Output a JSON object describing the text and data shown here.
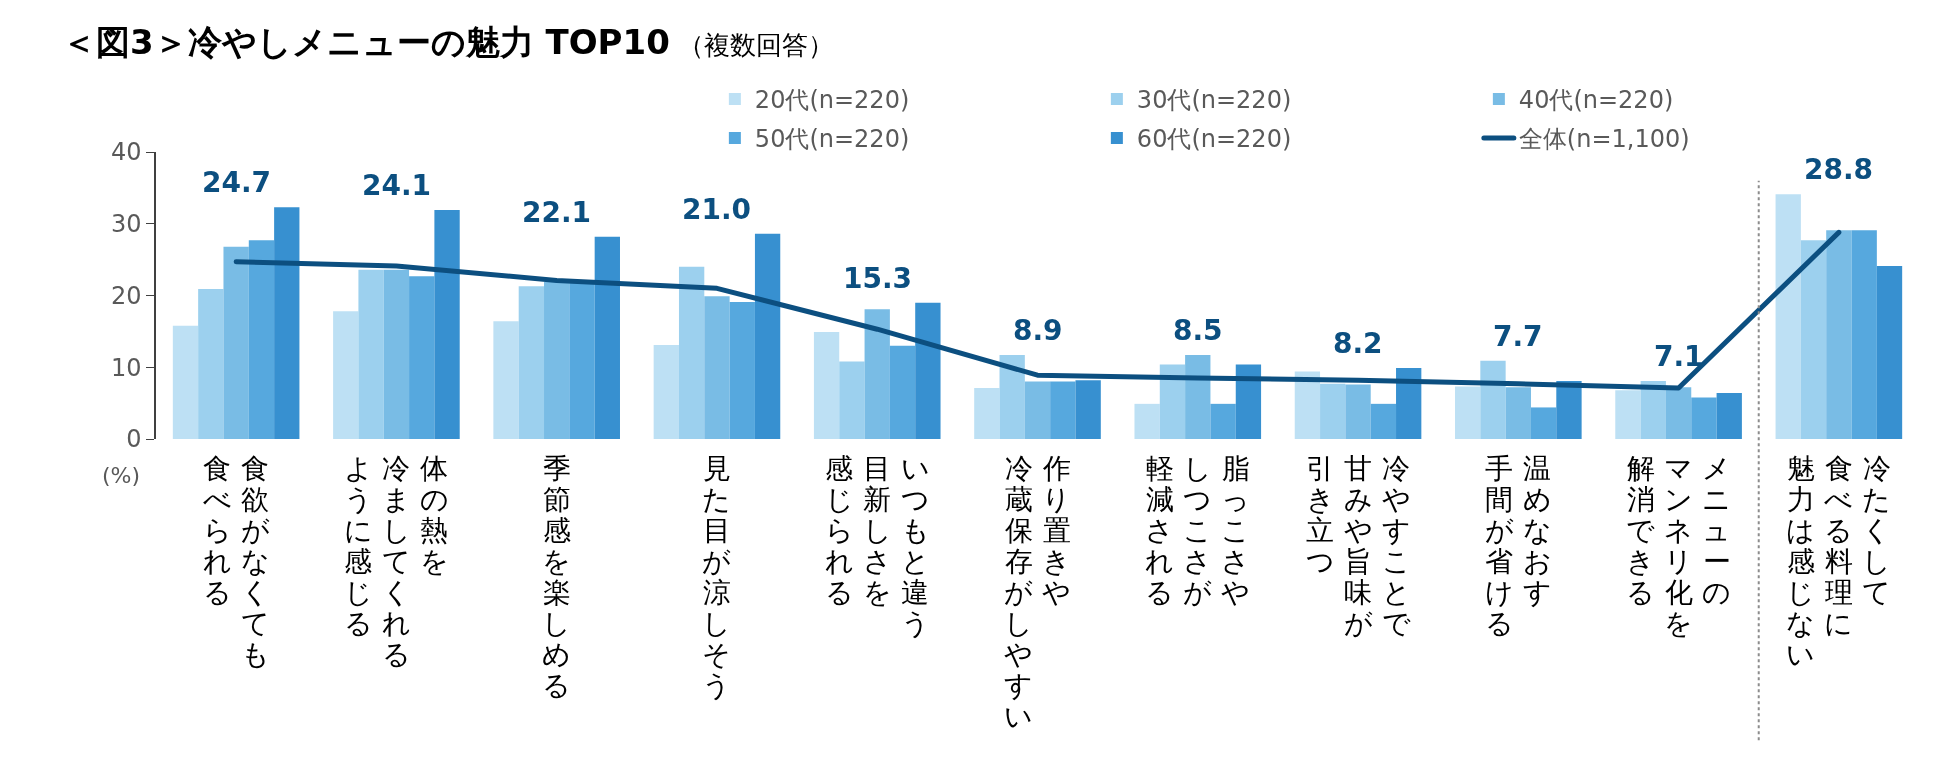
{
  "chart_data": {
    "type": "bar",
    "title": "＜図3＞冷やしメニューの魅力 TOP10",
    "subtitle": "（複数回答）",
    "ylabel": "(%)",
    "categories": [
      "食欲がなくても食べられる",
      "体の熱を冷ましてくれるように感じる",
      "季節感を楽しめる",
      "見た目が涼しそう",
      "いつもと違う目新しさを感じられる",
      "作り置きや冷蔵保存がしやすい",
      "脂っこさやしつこさが軽減される",
      "冷やすことで甘みや旨味が引き立つ",
      "温めなおす手間が省ける",
      "メニューのマンネリ化を解消できる",
      "冷たくして食べる料理に魅力は感じない"
    ],
    "series": [
      {
        "name": "20代(n=220)",
        "color": "#bde0f4",
        "values": [
          15.8,
          17.8,
          16.4,
          13.1,
          14.9,
          7.1,
          4.9,
          9.4,
          7.3,
          6.8,
          34.1
        ]
      },
      {
        "name": "30代(n=220)",
        "color": "#9cd0ee",
        "values": [
          20.9,
          23.6,
          21.3,
          24.0,
          10.8,
          11.7,
          10.4,
          7.7,
          10.9,
          8.1,
          27.7
        ]
      },
      {
        "name": "40代(n=220)",
        "color": "#79bce5",
        "values": [
          26.8,
          23.6,
          21.9,
          19.9,
          18.1,
          8.0,
          11.7,
          7.6,
          7.2,
          7.2,
          29.1
        ]
      },
      {
        "name": "50代(n=220)",
        "color": "#56a8de",
        "values": [
          27.7,
          22.7,
          21.8,
          19.1,
          13.0,
          8.0,
          4.9,
          4.9,
          4.4,
          5.8,
          29.1
        ]
      },
      {
        "name": "60代(n=220)",
        "color": "#3790d0",
        "values": [
          32.3,
          31.9,
          28.2,
          28.6,
          19.0,
          8.2,
          10.4,
          9.9,
          8.1,
          6.4,
          24.1
        ]
      },
      {
        "name": "全体(n=1,100)",
        "type": "line",
        "color": "#0c4f80",
        "values": [
          24.7,
          24.1,
          22.1,
          21.0,
          15.3,
          8.9,
          8.5,
          8.2,
          7.7,
          7.1,
          28.8
        ],
        "value_labels": [
          "24.7",
          "24.1",
          "22.1",
          "21.0",
          "15.3",
          "8.9",
          "8.5",
          "8.2",
          "7.7",
          "7.1",
          "28.8"
        ]
      }
    ],
    "ylim": [
      0,
      40
    ],
    "yticks": [
      0,
      10,
      20,
      30,
      40
    ],
    "legend": "top right"
  }
}
